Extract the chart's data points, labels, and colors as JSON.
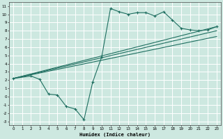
{
  "xlabel": "Humidex (Indice chaleur)",
  "background_color": "#cde8e0",
  "grid_color": "#b0d8cc",
  "line_color": "#1e6e60",
  "xlim": [
    -0.5,
    23.5
  ],
  "ylim": [
    -3.5,
    11.5
  ],
  "xticks": [
    0,
    1,
    2,
    3,
    4,
    5,
    6,
    7,
    8,
    9,
    10,
    11,
    12,
    13,
    14,
    15,
    16,
    17,
    18,
    19,
    20,
    21,
    22,
    23
  ],
  "yticks": [
    -3,
    -2,
    -1,
    0,
    1,
    2,
    3,
    4,
    5,
    6,
    7,
    8,
    9,
    10,
    11
  ],
  "zigzag": {
    "x": [
      0,
      2,
      3,
      4,
      5,
      6,
      7,
      8,
      9,
      10,
      11,
      12,
      13,
      14,
      15,
      16,
      17,
      18,
      19,
      20,
      21,
      22,
      23
    ],
    "y": [
      2.2,
      2.5,
      2.1,
      0.3,
      0.2,
      -1.2,
      -1.5,
      -2.8,
      1.8,
      4.8,
      10.7,
      10.3,
      10.0,
      10.2,
      10.2,
      9.8,
      10.3,
      9.3,
      8.3,
      8.1,
      8.0,
      8.1,
      8.5
    ]
  },
  "straight_lines": [
    {
      "x": [
        0,
        23
      ],
      "y": [
        2.2,
        8.5
      ]
    },
    {
      "x": [
        0,
        23
      ],
      "y": [
        2.2,
        8.0
      ]
    },
    {
      "x": [
        0,
        23
      ],
      "y": [
        2.2,
        7.3
      ]
    }
  ]
}
